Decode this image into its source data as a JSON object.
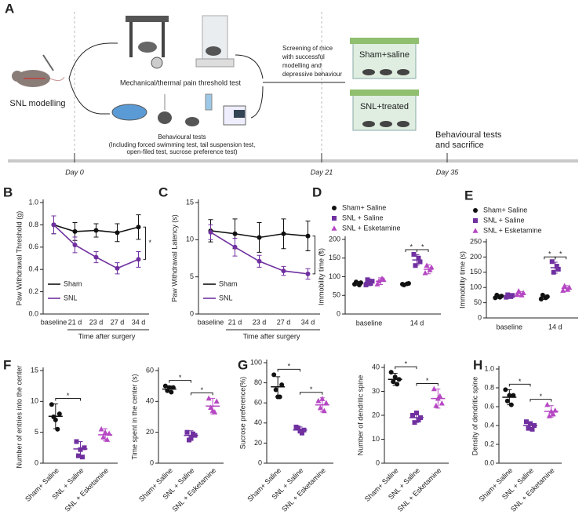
{
  "panel_a": {
    "label": "A",
    "model": "SNL modelling",
    "pain_test": "Mechanical/thermal pain threshold test",
    "behaviour_title": "Behavioural tests",
    "behaviour_detail": [
      "(Including forced swimming test, tail suspension test,",
      "open-filed test, sucrose preference test)"
    ],
    "screening": [
      "Screening of mice",
      "with successful",
      "modelling and",
      "depressive behaviour"
    ],
    "groups": [
      "Sham+saline",
      "SNL+treated"
    ],
    "final": [
      "Behavioural tests",
      "and sacrifice"
    ],
    "timeline": [
      "Day 0",
      "Day 21",
      "Day 35"
    ]
  },
  "chart_data": [
    {
      "type": "line",
      "panel_label": "B",
      "ylabel": "Paw Withdrawal Threshold (g)",
      "xlabel": "Time after surgery",
      "categories": [
        "baseline",
        "21 d",
        "23 d",
        "27 d",
        "34 d"
      ],
      "ylim": [
        0,
        1
      ],
      "yticks": [
        {
          "value": 0,
          "label": "0.0"
        },
        0.2,
        0.4,
        0.6,
        0.8,
        {
          "value": 1,
          "label": "1.0"
        }
      ],
      "legend": "lower left",
      "series": [
        {
          "name": "Sham",
          "color": "#111111",
          "marker": "circle",
          "values": [
            0.8,
            0.74,
            0.75,
            0.73,
            0.78
          ],
          "errors": [
            0.08,
            0.08,
            0.06,
            0.08,
            0.11
          ]
        },
        {
          "name": "SNL",
          "color": "#7030a0",
          "marker": "circle",
          "values": [
            0.8,
            0.62,
            0.51,
            0.41,
            0.49
          ],
          "errors": [
            0.08,
            0.07,
            0.05,
            0.05,
            0.07
          ]
        }
      ],
      "annotations": [
        {
          "text": "*"
        }
      ]
    },
    {
      "type": "line",
      "panel_label": "C",
      "ylabel": "Paw Withdrawal Latency (s)",
      "xlabel": "Time after surgery",
      "categories": [
        "baseline",
        "21 d",
        "23 d",
        "27 d",
        "34 d"
      ],
      "ylim": [
        0,
        15
      ],
      "yticks": [
        0,
        5,
        10,
        15
      ],
      "legend": "lower left",
      "series": [
        {
          "name": "Sham",
          "color": "#111111",
          "marker": "circle",
          "values": [
            11.2,
            10.8,
            10.3,
            10.8,
            10.5
          ],
          "errors": [
            1.5,
            2.0,
            2.0,
            2.0,
            2.0
          ]
        },
        {
          "name": "SNL",
          "color": "#7030a0",
          "marker": "circle",
          "values": [
            11.0,
            9.0,
            7.1,
            5.8,
            5.4
          ],
          "errors": [
            1.0,
            1.2,
            0.8,
            0.6,
            0.7
          ]
        }
      ],
      "annotations": [
        {
          "text": "*"
        }
      ]
    },
    {
      "type": "grouped_dot",
      "panel_label": "D",
      "ylabel": "Immobility time (s)",
      "categories": [
        "baseline",
        "14 d"
      ],
      "ylim": [
        0,
        200
      ],
      "yticks": [
        0,
        50,
        100,
        150,
        200
      ],
      "legend": "top",
      "series": [
        {
          "name": "Sham+ Saline",
          "color": "#111111",
          "marker": "circle",
          "values": [
            82,
            80
          ],
          "errors": [
            5,
            3
          ],
          "points": [
            [
              80,
              84,
              86,
              78
            ],
            [
              80,
              82,
              78,
              81
            ]
          ]
        },
        {
          "name": "SNL + Saline",
          "color": "#7030a0",
          "marker": "square",
          "values": [
            85,
            145
          ],
          "errors": [
            9,
            14
          ],
          "points": [
            [
              78,
              88,
              92,
              82
            ],
            [
              160,
              140,
              130,
              150
            ]
          ]
        },
        {
          "name": "SNL + Esketamine",
          "color": "#b648c4",
          "marker": "triangle",
          "values": [
            88,
            120
          ],
          "errors": [
            9,
            12
          ],
          "points": [
            [
              80,
              92,
              88,
              95
            ],
            [
              110,
              125,
              130,
              118
            ]
          ]
        }
      ],
      "annotations": [
        {
          "text": "*",
          "category": 1,
          "between": [
            0,
            1
          ]
        },
        {
          "text": "*",
          "category": 1,
          "between": [
            1,
            2
          ]
        }
      ]
    },
    {
      "type": "grouped_dot",
      "panel_label": "E",
      "ylabel": "Immobility time (s)",
      "categories": [
        "baseline",
        "14 d"
      ],
      "ylim": [
        0,
        250
      ],
      "yticks": [
        0,
        50,
        100,
        150,
        200,
        250
      ],
      "legend": "top",
      "series": [
        {
          "name": "Sham+ Saline",
          "color": "#111111",
          "marker": "circle",
          "values": [
            70,
            68
          ],
          "errors": [
            6,
            7
          ],
          "points": [
            [
              66,
              72,
              75,
              68
            ],
            [
              62,
              70,
              75,
              66
            ]
          ]
        },
        {
          "name": "SNL + Saline",
          "color": "#7030a0",
          "marker": "square",
          "values": [
            72,
            165
          ],
          "errors": [
            6,
            18
          ],
          "points": [
            [
              68,
              74,
              76,
              70
            ],
            [
              185,
              160,
              150,
              170
            ]
          ]
        },
        {
          "name": "SNL + Esketamine",
          "color": "#b648c4",
          "marker": "triangle",
          "values": [
            80,
            97
          ],
          "errors": [
            7,
            9
          ],
          "points": [
            [
              76,
              82,
              88,
              75
            ],
            [
              90,
              100,
              105,
              93
            ]
          ]
        }
      ],
      "annotations": [
        {
          "text": "*",
          "category": 1,
          "between": [
            0,
            1
          ]
        },
        {
          "text": "*",
          "category": 1,
          "between": [
            1,
            2
          ]
        }
      ]
    },
    {
      "type": "dot",
      "panel_label": "F",
      "ylabel": "Number of entries into the center",
      "categories": [
        "Sham+ Saline",
        "SNL + Saline",
        "SNL + Esketamine"
      ],
      "ylim": [
        0,
        15
      ],
      "yticks": [
        0,
        5,
        10,
        15
      ],
      "colors": [
        "#111111",
        "#7030a0",
        "#b648c4"
      ],
      "markers": [
        "circle",
        "square",
        "triangle"
      ],
      "values": [
        7.6,
        2.3,
        4.6
      ],
      "errors": [
        2.0,
        1.2,
        1.0
      ],
      "points": [
        [
          9.5,
          8,
          7.5,
          5.5,
          7
        ],
        [
          3.5,
          2.5,
          1.2,
          1.0,
          2.2
        ],
        [
          5.5,
          4.8,
          4.2,
          3.8,
          5
        ]
      ],
      "annotations": [
        {
          "text": "*",
          "between": [
            0,
            1
          ]
        }
      ]
    },
    {
      "type": "dot",
      "ylabel": "Time spent in the center (s)",
      "categories": [
        "Sham+ Saline",
        "SNL + Saline",
        "SNL + Esketamine"
      ],
      "ylim": [
        0,
        60
      ],
      "yticks": [
        0,
        20,
        40,
        60
      ],
      "colors": [
        "#111111",
        "#7030a0",
        "#b648c4"
      ],
      "markers": [
        "circle",
        "square",
        "triangle"
      ],
      "values": [
        48,
        18,
        37
      ],
      "errors": [
        2,
        3,
        5
      ],
      "points": [
        [
          50,
          49,
          47,
          46,
          49
        ],
        [
          20,
          18,
          15,
          19,
          16
        ],
        [
          42,
          40,
          36,
          33,
          34
        ]
      ],
      "annotations": [
        {
          "text": "*",
          "between": [
            0,
            1
          ]
        },
        {
          "text": "*",
          "between": [
            1,
            2
          ]
        }
      ]
    },
    {
      "type": "dot",
      "panel_label": "G",
      "ylabel": "Sucrose preference(%)",
      "categories": [
        "Sham+ Saline",
        "SNL + Saline",
        "SNL + Esketamine"
      ],
      "ylim": [
        0,
        100
      ],
      "yticks": [
        0,
        20,
        40,
        60,
        80,
        100
      ],
      "colors": [
        "#111111",
        "#7030a0",
        "#b648c4"
      ],
      "markers": [
        "circle",
        "square",
        "triangle"
      ],
      "values": [
        76,
        33,
        58
      ],
      "errors": [
        10,
        3,
        7
      ],
      "points": [
        [
          88,
          78,
          73,
          66,
          66
        ],
        [
          36,
          33,
          35,
          30,
          32
        ],
        [
          62,
          60,
          55,
          52,
          64
        ]
      ],
      "annotations": [
        {
          "text": "*",
          "between": [
            0,
            1
          ]
        },
        {
          "text": "*",
          "between": [
            1,
            2
          ]
        }
      ]
    },
    {
      "type": "dot",
      "ylabel": "Number of dendritic spine",
      "categories": [
        "Sham+ Saline",
        "SNL + Saline",
        "SNL + Esketamine"
      ],
      "ylim": [
        0,
        40
      ],
      "yticks": [
        0,
        10,
        20,
        30,
        40
      ],
      "colors": [
        "#111111",
        "#7030a0",
        "#b648c4"
      ],
      "markers": [
        "circle",
        "square",
        "triangle"
      ],
      "values": [
        35,
        19,
        27
      ],
      "errors": [
        2.5,
        2,
        4
      ],
      "points": [
        [
          38,
          35,
          34,
          33,
          36
        ],
        [
          20,
          19,
          17,
          18,
          21
        ],
        [
          31,
          25,
          24,
          28,
          27
        ]
      ],
      "annotations": [
        {
          "text": "*",
          "between": [
            0,
            1
          ]
        },
        {
          "text": "*",
          "between": [
            1,
            2
          ]
        }
      ]
    },
    {
      "type": "dot",
      "panel_label": "H",
      "ylabel": "Density of dendritic spine",
      "categories": [
        "Sham+ Saline",
        "SNL + Saline",
        "SNL + Esketamine"
      ],
      "ylim": [
        0,
        1
      ],
      "yticks": [
        {
          "value": 0,
          "label": "0.0"
        },
        0.2,
        0.4,
        0.6,
        0.8,
        {
          "value": 1,
          "label": "1.0"
        }
      ],
      "colors": [
        "#111111",
        "#7030a0",
        "#b648c4"
      ],
      "markers": [
        "circle",
        "square",
        "triangle"
      ],
      "values": [
        0.7,
        0.4,
        0.55
      ],
      "errors": [
        0.08,
        0.04,
        0.06
      ],
      "points": [
        [
          0.78,
          0.72,
          0.66,
          0.62,
          0.72
        ],
        [
          0.44,
          0.4,
          0.37,
          0.36,
          0.42
        ],
        [
          0.62,
          0.56,
          0.5,
          0.52,
          0.55
        ]
      ],
      "annotations": [
        {
          "text": "*",
          "between": [
            0,
            1
          ]
        },
        {
          "text": "*",
          "between": [
            1,
            2
          ]
        }
      ]
    }
  ]
}
